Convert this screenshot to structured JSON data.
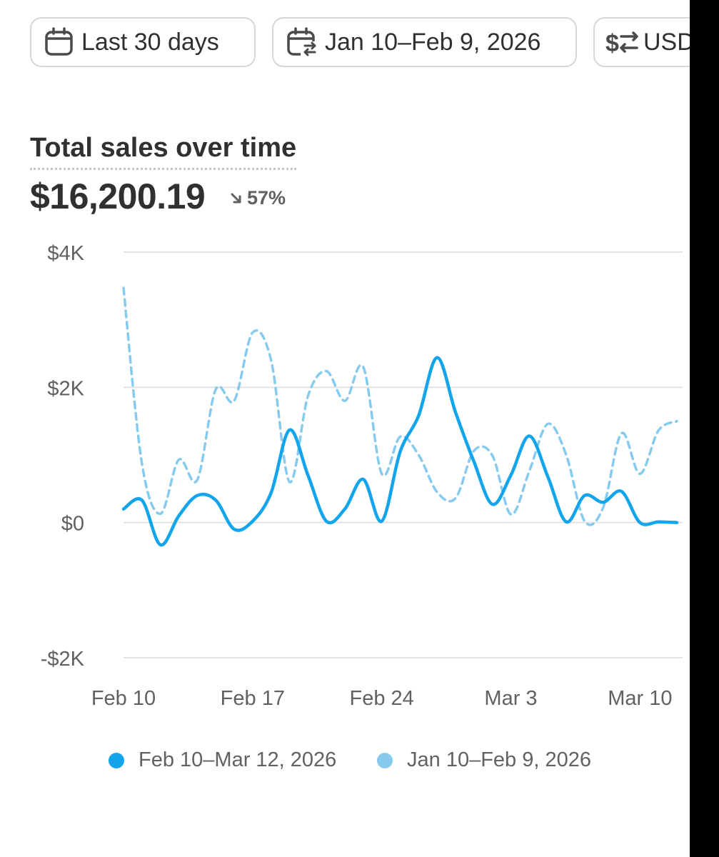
{
  "filters": {
    "period_label": "Last 30 days",
    "compare_label": "Jan 10–Feb 9, 2026",
    "currency_label": "USD"
  },
  "header": {
    "title": "Total sales over time",
    "total": "$16,200.19",
    "change": "57%"
  },
  "colors": {
    "current": "#12a5ec",
    "previous": "#86cbee",
    "grid": "#e3e3e3",
    "axis_text": "#616161"
  },
  "chart_data": {
    "type": "line",
    "title": "Total sales over time",
    "ylim": [
      -2000,
      4000
    ],
    "y_ticks": [
      {
        "value": 4000,
        "label": "$4K"
      },
      {
        "value": 2000,
        "label": "$2K"
      },
      {
        "value": 0,
        "label": "$0"
      },
      {
        "value": -2000,
        "label": "-$2K"
      }
    ],
    "x_ticks": [
      {
        "index": 0,
        "label": "Feb 10"
      },
      {
        "index": 7,
        "label": "Feb 17"
      },
      {
        "index": 14,
        "label": "Feb 24"
      },
      {
        "index": 21,
        "label": "Mar 3"
      },
      {
        "index": 28,
        "label": "Mar 10"
      }
    ],
    "series": [
      {
        "name": "Feb 10–Mar 12, 2026",
        "style": "solid",
        "values": [
          200,
          330,
          -330,
          100,
          400,
          330,
          -100,
          20,
          440,
          1370,
          700,
          20,
          200,
          640,
          20,
          1050,
          1580,
          2440,
          1630,
          900,
          270,
          700,
          1280,
          680,
          10,
          400,
          300,
          460,
          0,
          10,
          0
        ]
      },
      {
        "name": "Jan 10–Feb 9, 2026",
        "style": "dashed",
        "values": [
          3470,
          870,
          130,
          930,
          630,
          1970,
          1800,
          2810,
          2400,
          600,
          1870,
          2240,
          1800,
          2300,
          720,
          1270,
          1000,
          450,
          360,
          1060,
          990,
          120,
          760,
          1460,
          1000,
          20,
          220,
          1320,
          720,
          1360,
          1500
        ]
      }
    ],
    "legend": [
      "Feb 10–Mar 12, 2026",
      "Jan 10–Feb 9, 2026"
    ]
  }
}
